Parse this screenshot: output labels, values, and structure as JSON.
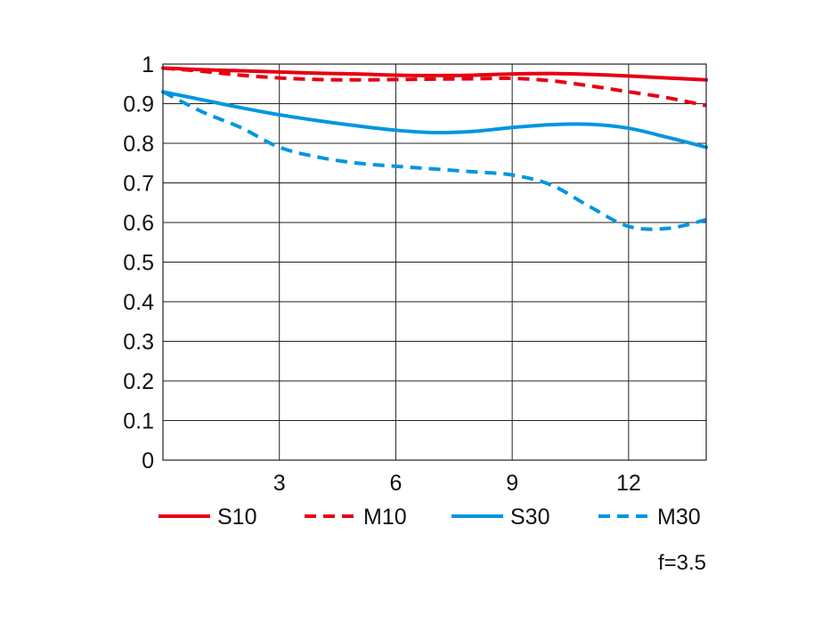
{
  "chart_data": {
    "type": "line",
    "title": "",
    "xlabel": "",
    "ylabel": "",
    "xlim": [
      0,
      14
    ],
    "ylim": [
      0,
      1
    ],
    "x_ticks": [
      "3",
      "6",
      "9",
      "12"
    ],
    "y_ticks": [
      "0",
      "0.1",
      "0.2",
      "0.3",
      "0.4",
      "0.5",
      "0.6",
      "0.7",
      "0.8",
      "0.9",
      "1"
    ],
    "grid": true,
    "legend_position": "bottom",
    "note": "f=3.5",
    "series": [
      {
        "name": "S10",
        "color": "#e60012",
        "dash": "solid",
        "x": [
          0,
          1,
          2,
          3,
          4,
          5,
          6,
          7,
          8,
          9,
          10,
          11,
          12,
          13,
          14
        ],
        "y": [
          0.99,
          0.986,
          0.983,
          0.98,
          0.977,
          0.975,
          0.972,
          0.971,
          0.972,
          0.975,
          0.976,
          0.974,
          0.97,
          0.965,
          0.96
        ]
      },
      {
        "name": "M10",
        "color": "#e60012",
        "dash": "dashed",
        "x": [
          0,
          1,
          2,
          3,
          4,
          5,
          6,
          7,
          8,
          9,
          10,
          11,
          12,
          13,
          14
        ],
        "y": [
          0.99,
          0.982,
          0.972,
          0.965,
          0.961,
          0.96,
          0.961,
          0.962,
          0.963,
          0.964,
          0.958,
          0.945,
          0.93,
          0.915,
          0.895
        ]
      },
      {
        "name": "S30",
        "color": "#0096e0",
        "dash": "solid",
        "x": [
          0,
          1,
          2,
          3,
          4,
          5,
          6,
          7,
          8,
          9,
          10,
          11,
          12,
          13,
          14
        ],
        "y": [
          0.93,
          0.91,
          0.89,
          0.872,
          0.857,
          0.844,
          0.833,
          0.827,
          0.83,
          0.84,
          0.847,
          0.848,
          0.838,
          0.815,
          0.79
        ]
      },
      {
        "name": "M30",
        "color": "#0096e0",
        "dash": "dashed",
        "x": [
          0,
          1,
          2,
          3,
          4,
          5,
          6,
          7,
          8,
          9,
          10,
          11,
          12,
          13,
          14
        ],
        "y": [
          0.93,
          0.88,
          0.84,
          0.79,
          0.765,
          0.75,
          0.742,
          0.735,
          0.728,
          0.72,
          0.695,
          0.64,
          0.59,
          0.585,
          0.607
        ]
      }
    ]
  }
}
